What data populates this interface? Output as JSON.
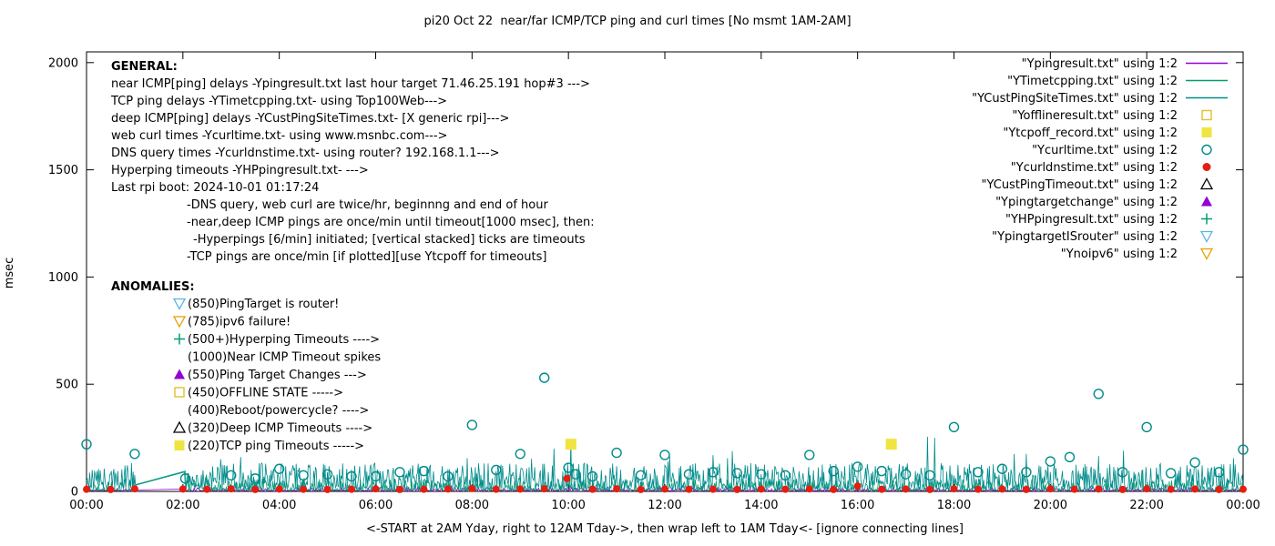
{
  "title": "pi20 Oct 22  near/far ICMP/TCP ping and curl times [No msmt 1AM-2AM]",
  "ylabel": "msec",
  "xlabel": "<-START at 2AM Yday, right to 12AM Tday->, then wrap left to 1AM Tday<- [ignore connecting lines]",
  "chart_data": {
    "type": "line",
    "x_range_hours": [
      0,
      24
    ],
    "x_ticks": [
      "00:00",
      "02:00",
      "04:00",
      "06:00",
      "08:00",
      "10:00",
      "12:00",
      "14:00",
      "16:00",
      "18:00",
      "20:00",
      "22:00",
      "00:00"
    ],
    "y_ticks": [
      0,
      500,
      1000,
      1500,
      2000
    ],
    "ylim": [
      0,
      2046
    ],
    "grid": false,
    "legend_position": "top-right",
    "no_measurement_gap_hours": [
      1.02,
      2.03
    ],
    "legend": [
      {
        "label": "\"Ypingresult.txt\" using 1:2",
        "marker": "line",
        "color": "#9400d3"
      },
      {
        "label": "\"YTimetcpping.txt\" using 1:2",
        "marker": "line",
        "color": "#009e73"
      },
      {
        "label": "\"YCustPingSiteTimes.txt\" using 1:2",
        "marker": "line",
        "color": "#008b8b"
      },
      {
        "label": "\"Yofflineresult.txt\" using 1:2",
        "marker": "square-open",
        "color": "#e0c22c"
      },
      {
        "label": "\"Ytcpoff_record.txt\" using 1:2",
        "marker": "square-filled",
        "color": "#f0e442"
      },
      {
        "label": "\"Ycurltime.txt\" using 1:2",
        "marker": "circle-open",
        "color": "#008b8b"
      },
      {
        "label": "\"Ycurldnstime.txt\" using 1:2",
        "marker": "circle-filled",
        "color": "#e51e10"
      },
      {
        "label": "\"YCustPingTimeout.txt\" using 1:2",
        "marker": "triangle-up-open",
        "color": "#000000"
      },
      {
        "label": "\"Ypingtargetchange\" using 1:2",
        "marker": "triangle-up-filled",
        "color": "#9400d3"
      },
      {
        "label": "\"YHPpingresult.txt\" using 1:2",
        "marker": "plus",
        "color": "#009e73"
      },
      {
        "label": "\"YpingtargetISrouter\" using 1:2",
        "marker": "triangle-down-open",
        "color": "#56b4e9"
      },
      {
        "label": "\"Ynoipv6\" using 1:2",
        "marker": "triangle-down-open",
        "color": "#e69f00"
      }
    ],
    "series": [
      {
        "name": "Ypingresult",
        "color": "#9400d3",
        "style": "noisy-line",
        "baseline": 3,
        "amplitude": 14,
        "skew": 3,
        "seed": 11,
        "gap_hours": [
          1.02,
          2.03
        ],
        "spikes": []
      },
      {
        "name": "YTimetcpping",
        "color": "#009e73",
        "style": "noisy-line",
        "baseline": 4,
        "amplitude": 55,
        "skew": 3,
        "seed": 22,
        "gap_hours": [
          1.02,
          2.045
        ],
        "spikes": [
          [
            2.05,
            95
          ],
          [
            2.5,
            60
          ],
          [
            5.0,
            70
          ],
          [
            9.0,
            90
          ],
          [
            12.3,
            70
          ],
          [
            15.0,
            75
          ],
          [
            18.3,
            80
          ],
          [
            21.9,
            100
          ]
        ]
      },
      {
        "name": "YCustPingSiteTimes",
        "color": "#008b8b",
        "style": "noisy-line",
        "baseline": 12,
        "amplitude": 120,
        "skew": 2,
        "seed": 33,
        "gap_hours": [
          1.02,
          2.03
        ],
        "spikes": [
          [
            3.2,
            160
          ],
          [
            7.9,
            155
          ],
          [
            9.7,
            200
          ],
          [
            10.05,
            240
          ],
          [
            12.1,
            165
          ],
          [
            13.3,
            155
          ],
          [
            17.45,
            255
          ],
          [
            17.6,
            250
          ],
          [
            19.5,
            175
          ],
          [
            21.0,
            165
          ],
          [
            23.8,
            155
          ]
        ]
      }
    ],
    "scatter": [
      {
        "name": "Ycurltime",
        "marker": "circle-open",
        "color": "#008b8b",
        "points": [
          [
            0.0,
            220
          ],
          [
            1.0,
            175
          ],
          [
            2.05,
            60
          ],
          [
            3.0,
            75
          ],
          [
            3.5,
            60
          ],
          [
            4.0,
            105
          ],
          [
            4.5,
            75
          ],
          [
            5.0,
            80
          ],
          [
            5.5,
            70
          ],
          [
            6.0,
            70
          ],
          [
            6.5,
            90
          ],
          [
            7.0,
            95
          ],
          [
            7.5,
            70
          ],
          [
            8.0,
            310
          ],
          [
            8.5,
            100
          ],
          [
            9.0,
            175
          ],
          [
            9.5,
            530
          ],
          [
            10.0,
            110
          ],
          [
            10.15,
            80
          ],
          [
            10.5,
            70
          ],
          [
            11.0,
            180
          ],
          [
            11.5,
            75
          ],
          [
            12.0,
            170
          ],
          [
            12.5,
            80
          ],
          [
            13.0,
            90
          ],
          [
            13.5,
            85
          ],
          [
            14.0,
            80
          ],
          [
            14.5,
            75
          ],
          [
            15.0,
            170
          ],
          [
            15.5,
            95
          ],
          [
            16.0,
            115
          ],
          [
            16.5,
            95
          ],
          [
            17.0,
            80
          ],
          [
            17.5,
            75
          ],
          [
            18.0,
            300
          ],
          [
            18.5,
            90
          ],
          [
            19.0,
            105
          ],
          [
            19.5,
            90
          ],
          [
            20.0,
            140
          ],
          [
            20.4,
            160
          ],
          [
            21.0,
            455
          ],
          [
            21.5,
            90
          ],
          [
            22.0,
            300
          ],
          [
            22.5,
            85
          ],
          [
            23.0,
            135
          ],
          [
            23.5,
            90
          ],
          [
            24.0,
            195
          ]
        ]
      },
      {
        "name": "Ycurldnstime",
        "marker": "circle-filled",
        "color": "#e51e10",
        "points": [
          [
            0,
            10
          ],
          [
            0.5,
            9
          ],
          [
            1,
            12
          ],
          [
            2,
            11
          ],
          [
            2.5,
            10
          ],
          [
            3,
            12
          ],
          [
            3.5,
            9
          ],
          [
            4,
            11
          ],
          [
            4.5,
            10
          ],
          [
            5,
            9
          ],
          [
            5.5,
            10
          ],
          [
            6,
            12
          ],
          [
            6.5,
            9
          ],
          [
            7,
            10
          ],
          [
            7.5,
            11
          ],
          [
            8,
            13
          ],
          [
            8.5,
            10
          ],
          [
            9,
            11
          ],
          [
            9.5,
            12
          ],
          [
            9.97,
            60
          ],
          [
            10.5,
            10
          ],
          [
            11,
            12
          ],
          [
            11.5,
            9
          ],
          [
            12,
            11
          ],
          [
            12.5,
            10
          ],
          [
            13,
            10
          ],
          [
            13.5,
            9
          ],
          [
            14,
            11
          ],
          [
            14.5,
            10
          ],
          [
            15,
            12
          ],
          [
            15.5,
            9
          ],
          [
            16,
            25
          ],
          [
            16.5,
            10
          ],
          [
            17,
            11
          ],
          [
            17.5,
            9
          ],
          [
            18,
            12
          ],
          [
            18.5,
            10
          ],
          [
            19,
            11
          ],
          [
            19.5,
            9
          ],
          [
            20,
            12
          ],
          [
            20.5,
            10
          ],
          [
            21,
            11
          ],
          [
            21.5,
            9
          ],
          [
            22,
            12
          ],
          [
            22.5,
            10
          ],
          [
            23,
            11
          ],
          [
            23.5,
            9
          ],
          [
            24,
            10
          ]
        ]
      },
      {
        "name": "Ytcpoff_record",
        "marker": "square-filled",
        "color": "#f0e442",
        "points": [
          [
            10.05,
            220
          ],
          [
            16.7,
            220
          ]
        ]
      }
    ]
  },
  "annotations": {
    "general_header": "GENERAL:",
    "general_lines": [
      {
        "indent": 0,
        "text": "near ICMP[ping] delays -Ypingresult.txt last hour target 71.46.25.191 hop#3 --->"
      },
      {
        "indent": 0,
        "text": "TCP ping delays -YTimetcpping.txt- using Top100Web--->"
      },
      {
        "indent": 0,
        "text": "deep ICMP[ping] delays -YCustPingSiteTimes.txt- [X generic rpi]--->"
      },
      {
        "indent": 0,
        "text": "web curl times -Ycurltime.txt- using www.msnbc.com--->"
      },
      {
        "indent": 0,
        "text": "DNS query times -Ycurldnstime.txt- using router? 192.168.1.1--->"
      },
      {
        "indent": 0,
        "text": "Hyperping timeouts -YHPpingresult.txt- --->"
      },
      {
        "indent": 0,
        "text": "Last rpi boot: 2024-10-01 01:17:24"
      },
      {
        "indent": 1,
        "text": "-DNS query, web curl are twice/hr, beginnng and end of hour"
      },
      {
        "indent": 1,
        "text": "-near,deep ICMP pings are once/min until timeout[1000 msec], then:"
      },
      {
        "indent": 2,
        "text": "-Hyperpings [6/min] initiated; [vertical stacked] ticks are timeouts"
      },
      {
        "indent": 1,
        "text": "-TCP pings are once/min [if plotted][use Ytcpoff for timeouts]"
      }
    ],
    "anomalies_header": "ANOMALIES:",
    "anomalies": [
      {
        "marker": "triangle-down-open",
        "color": "#56b4e9",
        "text": "(850)PingTarget is router!"
      },
      {
        "marker": "triangle-down-open",
        "color": "#e69f00",
        "text": "(785)ipv6 failure!"
      },
      {
        "marker": "plus",
        "color": "#009e73",
        "text": "(500+)Hyperping Timeouts ---->"
      },
      {
        "marker": null,
        "color": null,
        "text": "(1000)Near ICMP Timeout spikes"
      },
      {
        "marker": "triangle-up-filled",
        "color": "#9400d3",
        "text": "(550)Ping Target Changes --->"
      },
      {
        "marker": "square-open",
        "color": "#e0c22c",
        "text": "(450)OFFLINE STATE ----->"
      },
      {
        "marker": null,
        "color": null,
        "text": "(400)Reboot/powercycle? ---->"
      },
      {
        "marker": "triangle-up-open",
        "color": "#000000",
        "text": "(320)Deep ICMP Timeouts ---->"
      },
      {
        "marker": "square-filled",
        "color": "#f0e442",
        "text": "(220)TCP ping Timeouts ----->"
      }
    ]
  }
}
